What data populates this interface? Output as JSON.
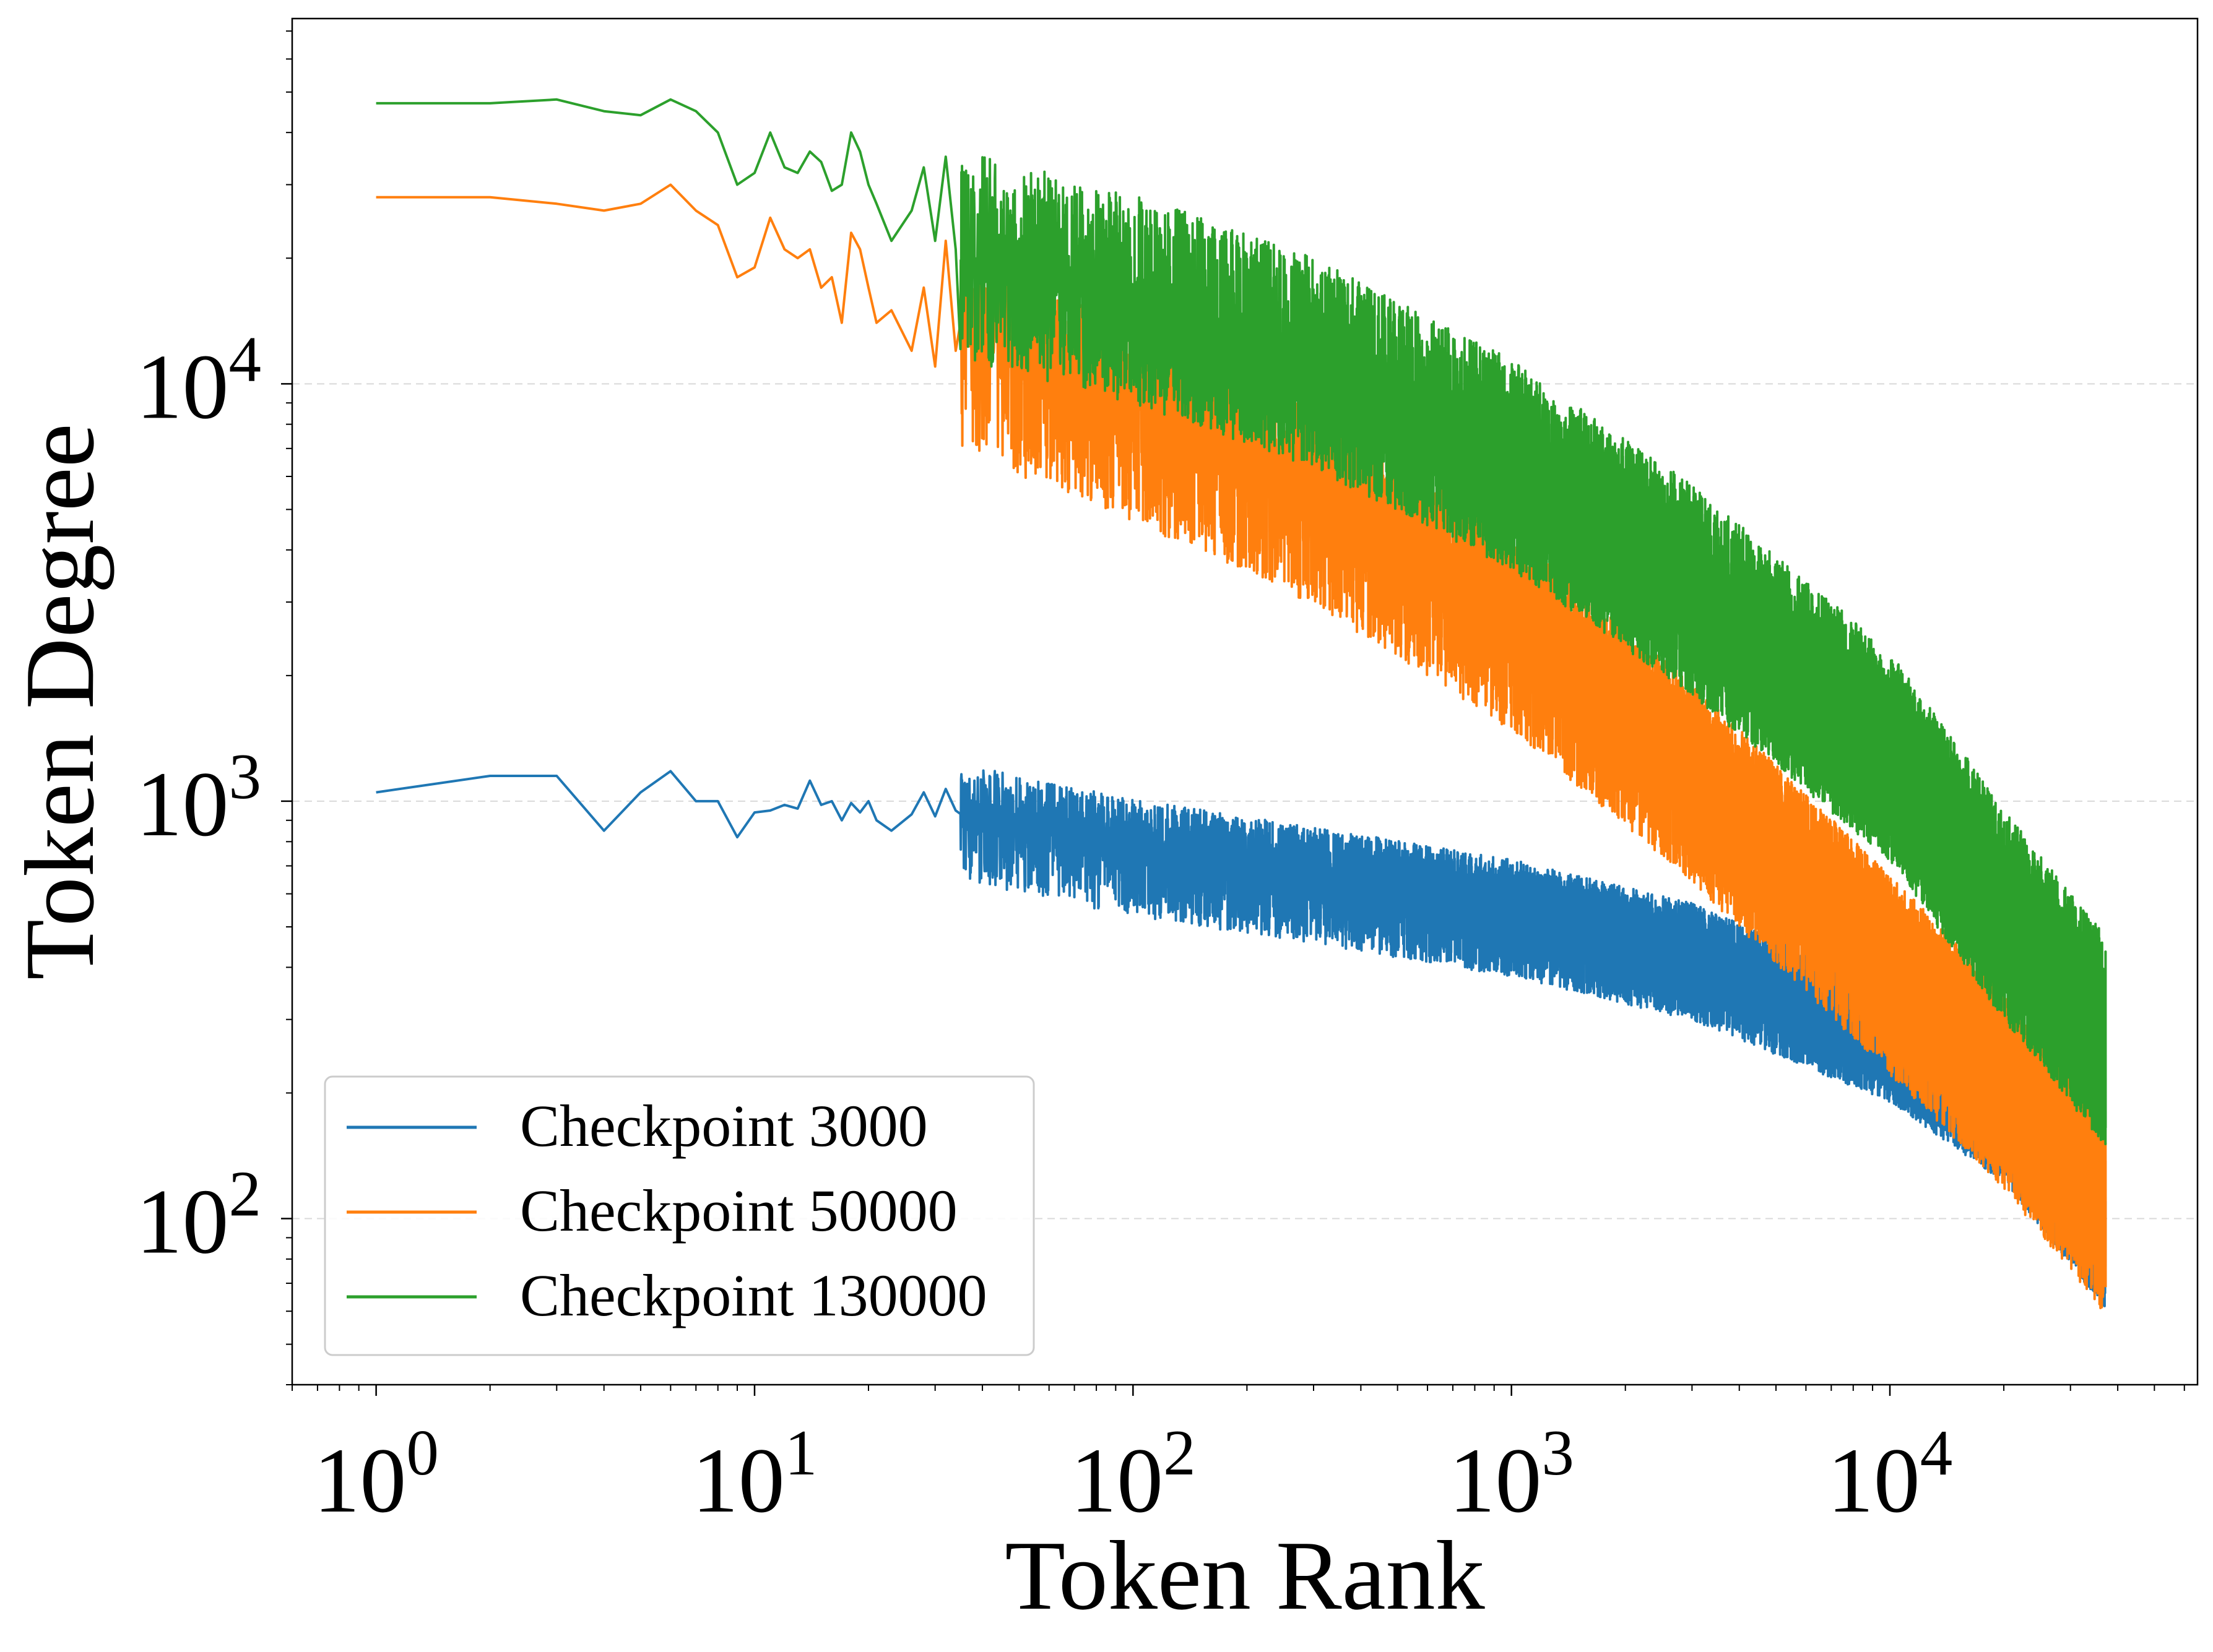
{
  "chart_data": {
    "type": "line",
    "title": "",
    "xlabel": "Token Rank",
    "ylabel": "Token Degree",
    "xscale": "log",
    "yscale": "log",
    "xlim": [
      0.6,
      65000
    ],
    "ylim": [
      40,
      75000
    ],
    "x_ticks": [
      {
        "value": 1,
        "base": "10",
        "exp": "0"
      },
      {
        "value": 10,
        "base": "10",
        "exp": "1"
      },
      {
        "value": 100,
        "base": "10",
        "exp": "2"
      },
      {
        "value": 1000,
        "base": "10",
        "exp": "3"
      },
      {
        "value": 10000,
        "base": "10",
        "exp": "4"
      }
    ],
    "y_ticks": [
      {
        "value": 100,
        "base": "10",
        "exp": "2"
      },
      {
        "value": 1000,
        "base": "10",
        "exp": "3"
      },
      {
        "value": 10000,
        "base": "10",
        "exp": "4"
      }
    ],
    "grid": "horizontal dashed at major y ticks",
    "legend_position": "lower-left",
    "series": [
      {
        "name": "Checkpoint 3000",
        "color": "#1f77b4",
        "head": [
          [
            1,
            1050
          ],
          [
            2,
            1150
          ],
          [
            3,
            1150
          ],
          [
            4,
            850
          ],
          [
            5,
            1050
          ],
          [
            6,
            1180
          ],
          [
            7,
            1000
          ],
          [
            8,
            1000
          ],
          [
            9,
            820
          ],
          [
            10,
            940
          ],
          [
            11,
            950
          ],
          [
            12,
            980
          ],
          [
            13,
            960
          ],
          [
            14,
            1120
          ],
          [
            15,
            980
          ],
          [
            16,
            1000
          ],
          [
            17,
            900
          ],
          [
            18,
            990
          ],
          [
            19,
            940
          ],
          [
            20,
            1000
          ],
          [
            21,
            900
          ],
          [
            23,
            850
          ],
          [
            26,
            930
          ],
          [
            28,
            1050
          ],
          [
            30,
            920
          ],
          [
            32,
            1070
          ],
          [
            34,
            950
          ]
        ],
        "trend": [
          [
            35,
            950
          ],
          [
            100,
            780
          ],
          [
            300,
            670
          ],
          [
            1000,
            560
          ],
          [
            3000,
            440
          ],
          [
            10000,
            280
          ],
          [
            20000,
            180
          ],
          [
            37000,
            90
          ]
        ],
        "spread_down": 0.12,
        "spread_up": 0.08
      },
      {
        "name": "Checkpoint 50000",
        "color": "#ff7f0e",
        "head": [
          [
            1,
            28000
          ],
          [
            2,
            28000
          ],
          [
            3,
            27000
          ],
          [
            4,
            26000
          ],
          [
            5,
            27000
          ],
          [
            6,
            30000
          ],
          [
            7,
            26000
          ],
          [
            8,
            24000
          ],
          [
            9,
            18000
          ],
          [
            10,
            19000
          ],
          [
            11,
            25000
          ],
          [
            12,
            21000
          ],
          [
            13,
            20000
          ],
          [
            14,
            21000
          ],
          [
            15,
            17000
          ],
          [
            16,
            18000
          ],
          [
            17,
            14000
          ],
          [
            18,
            23000
          ],
          [
            19,
            21000
          ],
          [
            20,
            17000
          ],
          [
            21,
            14000
          ],
          [
            23,
            15000
          ],
          [
            26,
            12000
          ],
          [
            28,
            17000
          ],
          [
            30,
            11000
          ],
          [
            32,
            22000
          ],
          [
            34,
            12000
          ]
        ],
        "trend": [
          [
            35,
            14000
          ],
          [
            100,
            9500
          ],
          [
            300,
            6000
          ],
          [
            1000,
            3000
          ],
          [
            3000,
            1300
          ],
          [
            10000,
            450
          ],
          [
            20000,
            240
          ],
          [
            37000,
            120
          ]
        ],
        "spread_down": 0.22,
        "spread_up": 0.12
      },
      {
        "name": "Checkpoint 130000",
        "color": "#2ca02c",
        "head": [
          [
            1,
            47000
          ],
          [
            2,
            47000
          ],
          [
            3,
            48000
          ],
          [
            4,
            45000
          ],
          [
            5,
            44000
          ],
          [
            6,
            48000
          ],
          [
            7,
            45000
          ],
          [
            8,
            40000
          ],
          [
            9,
            30000
          ],
          [
            10,
            32000
          ],
          [
            11,
            40000
          ],
          [
            12,
            33000
          ],
          [
            13,
            32000
          ],
          [
            14,
            36000
          ],
          [
            15,
            34000
          ],
          [
            16,
            29000
          ],
          [
            17,
            30000
          ],
          [
            18,
            40000
          ],
          [
            19,
            36000
          ],
          [
            20,
            30000
          ],
          [
            21,
            27000
          ],
          [
            23,
            22000
          ],
          [
            26,
            26000
          ],
          [
            28,
            33000
          ],
          [
            30,
            22000
          ],
          [
            32,
            35000
          ],
          [
            34,
            21000
          ]
        ],
        "trend": [
          [
            35,
            19000
          ],
          [
            100,
            15000
          ],
          [
            300,
            10500
          ],
          [
            1000,
            6000
          ],
          [
            3000,
            3000
          ],
          [
            10000,
            1200
          ],
          [
            20000,
            500
          ],
          [
            37000,
            250
          ]
        ],
        "spread_down": 0.16,
        "spread_up": 0.2
      }
    ]
  }
}
